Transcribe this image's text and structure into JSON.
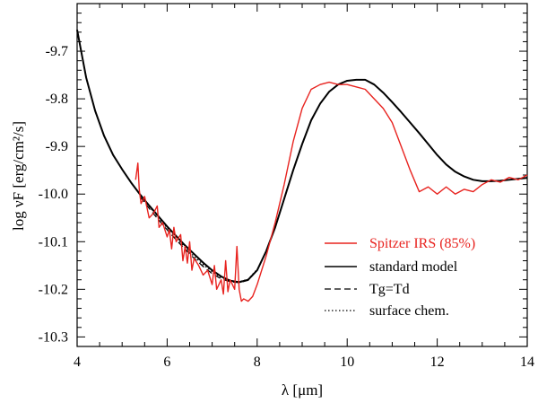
{
  "chart_data": {
    "type": "line",
    "title": "",
    "xlabel": "λ [μm]",
    "ylabel": "log νF [erg/cm²/s]",
    "xlim": [
      4,
      14
    ],
    "ylim": [
      -10.32,
      -9.6
    ],
    "x_ticks": [
      4,
      6,
      8,
      10,
      12,
      14
    ],
    "x_tick_labels": [
      "4",
      "6",
      "8",
      "10",
      "12",
      "14"
    ],
    "y_ticks": [
      -9.7,
      -9.8,
      -9.9,
      -10.0,
      -10.1,
      -10.2,
      -10.3
    ],
    "y_tick_labels": [
      "-9.7",
      "-9.8",
      "-9.9",
      "-10.0",
      "-10.1",
      "-10.2",
      "-10.3"
    ],
    "legend_position": "lower-right",
    "legend": [
      {
        "label": "Spitzer IRS (85%)",
        "style": "solid",
        "color": "#e8231f"
      },
      {
        "label": "standard model",
        "style": "solid",
        "color": "#000000"
      },
      {
        "label": "Tg=Td",
        "style": "dashed",
        "color": "#000000"
      },
      {
        "label": "surface chem.",
        "style": "dotted",
        "color": "#000000"
      }
    ],
    "series": [
      {
        "name": "standard model",
        "style": "solid",
        "color": "#000000",
        "x": [
          4.0,
          4.2,
          4.4,
          4.6,
          4.8,
          5.0,
          5.2,
          5.4,
          5.6,
          5.8,
          6.0,
          6.2,
          6.4,
          6.6,
          6.8,
          7.0,
          7.2,
          7.4,
          7.6,
          7.8,
          8.0,
          8.2,
          8.4,
          8.6,
          8.8,
          9.0,
          9.2,
          9.4,
          9.6,
          9.8,
          10.0,
          10.2,
          10.4,
          10.6,
          10.8,
          11.0,
          11.2,
          11.4,
          11.6,
          11.8,
          12.0,
          12.2,
          12.4,
          12.6,
          12.8,
          13.0,
          13.2,
          13.4,
          13.6,
          13.8,
          14.0
        ],
        "values": [
          -9.655,
          -9.755,
          -9.825,
          -9.878,
          -9.918,
          -9.948,
          -9.976,
          -10.001,
          -10.024,
          -10.046,
          -10.068,
          -10.088,
          -10.108,
          -10.126,
          -10.144,
          -10.16,
          -10.173,
          -10.182,
          -10.185,
          -10.18,
          -10.16,
          -10.12,
          -10.07,
          -10.01,
          -9.95,
          -9.895,
          -9.845,
          -9.81,
          -9.785,
          -9.77,
          -9.762,
          -9.76,
          -9.76,
          -9.77,
          -9.787,
          -9.807,
          -9.828,
          -9.85,
          -9.872,
          -9.895,
          -9.918,
          -9.938,
          -9.953,
          -9.963,
          -9.97,
          -9.973,
          -9.973,
          -9.972,
          -9.97,
          -9.968,
          -9.966
        ]
      },
      {
        "name": "Tg=Td",
        "style": "dashed",
        "color": "#000000",
        "x": [
          5.4,
          5.6,
          5.8,
          6.0,
          6.2,
          6.4,
          6.6,
          6.8,
          7.0,
          7.2,
          7.4,
          7.6,
          7.8,
          8.0
        ],
        "values": [
          -10.006,
          -10.03,
          -10.053,
          -10.075,
          -10.096,
          -10.116,
          -10.135,
          -10.152,
          -10.167,
          -10.178,
          -10.184,
          -10.186,
          -10.181,
          -10.16
        ]
      },
      {
        "name": "surface chem.",
        "style": "dotted",
        "color": "#000000",
        "x": [
          5.4,
          5.6,
          5.8,
          6.0,
          6.2,
          6.4,
          6.6,
          6.8,
          7.0,
          7.2,
          7.4,
          7.6,
          7.8,
          8.0
        ],
        "values": [
          -10.002,
          -10.026,
          -10.049,
          -10.071,
          -10.092,
          -10.112,
          -10.131,
          -10.148,
          -10.163,
          -10.175,
          -10.182,
          -10.184,
          -10.179,
          -10.158
        ]
      },
      {
        "name": "Spitzer IRS (85%)",
        "style": "solid",
        "color": "#e8231f",
        "x": [
          5.3,
          5.35,
          5.38,
          5.42,
          5.5,
          5.6,
          5.7,
          5.78,
          5.82,
          5.9,
          6.0,
          6.05,
          6.1,
          6.15,
          6.2,
          6.3,
          6.35,
          6.4,
          6.45,
          6.5,
          6.55,
          6.6,
          6.7,
          6.8,
          6.9,
          7.0,
          7.05,
          7.1,
          7.2,
          7.25,
          7.3,
          7.35,
          7.4,
          7.5,
          7.55,
          7.6,
          7.65,
          7.7,
          7.8,
          7.9,
          8.0,
          8.2,
          8.4,
          8.6,
          8.8,
          9.0,
          9.2,
          9.4,
          9.6,
          9.8,
          10.0,
          10.2,
          10.4,
          10.6,
          10.8,
          11.0,
          11.2,
          11.4,
          11.6,
          11.8,
          12.0,
          12.2,
          12.4,
          12.6,
          12.8,
          13.0,
          13.2,
          13.4,
          13.6,
          13.8,
          14.0
        ],
        "values": [
          -9.97,
          -9.935,
          -9.99,
          -10.02,
          -10.005,
          -10.05,
          -10.04,
          -10.025,
          -10.07,
          -10.06,
          -10.09,
          -10.075,
          -10.115,
          -10.07,
          -10.1,
          -10.085,
          -10.14,
          -10.11,
          -10.145,
          -10.1,
          -10.16,
          -10.135,
          -10.15,
          -10.17,
          -10.16,
          -10.19,
          -10.15,
          -10.2,
          -10.18,
          -10.21,
          -10.14,
          -10.205,
          -10.18,
          -10.2,
          -10.11,
          -10.2,
          -10.225,
          -10.22,
          -10.225,
          -10.215,
          -10.19,
          -10.13,
          -10.06,
          -9.98,
          -9.89,
          -9.82,
          -9.78,
          -9.77,
          -9.765,
          -9.77,
          -9.77,
          -9.775,
          -9.78,
          -9.8,
          -9.82,
          -9.85,
          -9.9,
          -9.95,
          -9.995,
          -9.985,
          -10.0,
          -9.985,
          -10.0,
          -9.99,
          -9.995,
          -9.98,
          -9.97,
          -9.975,
          -9.965,
          -9.97,
          -9.96
        ]
      }
    ]
  }
}
